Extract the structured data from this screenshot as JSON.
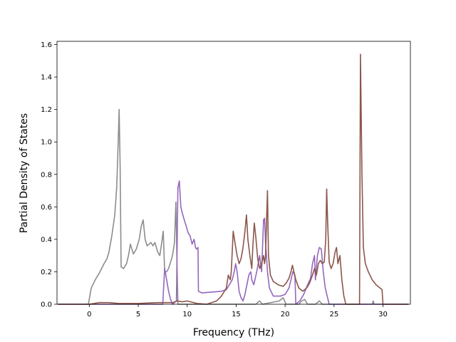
{
  "chart_data": {
    "type": "line",
    "title": "",
    "xlabel": "Frequency (THz)",
    "ylabel": "Partial Density of States",
    "xlim": [
      -3.3,
      32.8
    ],
    "ylim": [
      0,
      1.62
    ],
    "xticks": [
      0,
      5,
      10,
      15,
      20,
      25,
      30
    ],
    "yticks": [
      0.0,
      0.2,
      0.4,
      0.6,
      0.8,
      1.0,
      1.2,
      1.4,
      1.6
    ],
    "grid": false,
    "legend": "none",
    "series": [
      {
        "color": "#8c8c8c",
        "points": [
          [
            -3.2,
            0
          ],
          [
            -0.1,
            0
          ],
          [
            0.2,
            0.1
          ],
          [
            0.6,
            0.15
          ],
          [
            1.0,
            0.19
          ],
          [
            1.5,
            0.25
          ],
          [
            1.8,
            0.28
          ],
          [
            2.0,
            0.32
          ],
          [
            2.3,
            0.42
          ],
          [
            2.6,
            0.55
          ],
          [
            2.8,
            0.72
          ],
          [
            2.95,
            1.0
          ],
          [
            3.05,
            1.2
          ],
          [
            3.15,
            0.85
          ],
          [
            3.25,
            0.23
          ],
          [
            3.5,
            0.22
          ],
          [
            3.8,
            0.25
          ],
          [
            4.0,
            0.3
          ],
          [
            4.2,
            0.37
          ],
          [
            4.4,
            0.33
          ],
          [
            4.5,
            0.31
          ],
          [
            4.8,
            0.34
          ],
          [
            5.1,
            0.4
          ],
          [
            5.3,
            0.48
          ],
          [
            5.5,
            0.52
          ],
          [
            5.7,
            0.4
          ],
          [
            5.9,
            0.36
          ],
          [
            6.1,
            0.37
          ],
          [
            6.3,
            0.38
          ],
          [
            6.5,
            0.36
          ],
          [
            6.7,
            0.38
          ],
          [
            7.0,
            0.32
          ],
          [
            7.2,
            0.3
          ],
          [
            7.4,
            0.38
          ],
          [
            7.55,
            0.45
          ],
          [
            7.7,
            0.2
          ],
          [
            7.9,
            0.2
          ],
          [
            8.1,
            0.22
          ],
          [
            8.3,
            0.26
          ],
          [
            8.5,
            0.3
          ],
          [
            8.7,
            0.38
          ],
          [
            8.85,
            0.63
          ],
          [
            8.95,
            0.28
          ],
          [
            9.05,
            0.0
          ],
          [
            17.0,
            0.0
          ],
          [
            17.4,
            0.02
          ],
          [
            17.7,
            0.0
          ],
          [
            19.4,
            0.02
          ],
          [
            19.8,
            0.04
          ],
          [
            20.1,
            0.0
          ],
          [
            21.4,
            0.0
          ],
          [
            21.7,
            0.02
          ],
          [
            22.0,
            0.03
          ],
          [
            22.3,
            0.0
          ],
          [
            23.1,
            0.0
          ],
          [
            23.5,
            0.02
          ],
          [
            23.8,
            0.0
          ],
          [
            28.9,
            0.0
          ],
          [
            29.0,
            0.02
          ],
          [
            29.1,
            0.0
          ],
          [
            32.6,
            0.0
          ]
        ]
      },
      {
        "color": "#9467bd",
        "points": [
          [
            -3.2,
            0
          ],
          [
            7.5,
            0
          ],
          [
            7.7,
            0.22
          ],
          [
            7.9,
            0.15
          ],
          [
            8.1,
            0.08
          ],
          [
            8.3,
            0.03
          ],
          [
            8.5,
            0.0
          ],
          [
            8.9,
            0.02
          ],
          [
            9.05,
            0.72
          ],
          [
            9.2,
            0.76
          ],
          [
            9.35,
            0.6
          ],
          [
            9.5,
            0.56
          ],
          [
            9.7,
            0.52
          ],
          [
            9.9,
            0.48
          ],
          [
            10.1,
            0.44
          ],
          [
            10.3,
            0.42
          ],
          [
            10.5,
            0.37
          ],
          [
            10.7,
            0.4
          ],
          [
            10.85,
            0.35
          ],
          [
            10.95,
            0.34
          ],
          [
            11.1,
            0.35
          ],
          [
            11.15,
            0.08
          ],
          [
            11.5,
            0.07
          ],
          [
            12.5,
            0.075
          ],
          [
            13.5,
            0.08
          ],
          [
            14.0,
            0.09
          ],
          [
            14.3,
            0.12
          ],
          [
            14.6,
            0.15
          ],
          [
            14.8,
            0.2
          ],
          [
            14.95,
            0.25
          ],
          [
            15.1,
            0.2
          ],
          [
            15.3,
            0.08
          ],
          [
            15.5,
            0.04
          ],
          [
            15.7,
            0.02
          ],
          [
            15.9,
            0.06
          ],
          [
            16.1,
            0.12
          ],
          [
            16.3,
            0.18
          ],
          [
            16.5,
            0.2
          ],
          [
            16.6,
            0.15
          ],
          [
            16.8,
            0.12
          ],
          [
            17.1,
            0.2
          ],
          [
            17.4,
            0.3
          ],
          [
            17.6,
            0.2
          ],
          [
            17.8,
            0.52
          ],
          [
            17.9,
            0.53
          ],
          [
            18.0,
            0.38
          ],
          [
            18.2,
            0.2
          ],
          [
            18.4,
            0.1
          ],
          [
            18.8,
            0.05
          ],
          [
            19.5,
            0.05
          ],
          [
            20.0,
            0.06
          ],
          [
            20.4,
            0.1
          ],
          [
            20.8,
            0.2
          ],
          [
            21.0,
            0.18
          ],
          [
            21.1,
            0.0
          ],
          [
            21.5,
            0.02
          ],
          [
            21.9,
            0.06
          ],
          [
            22.3,
            0.12
          ],
          [
            22.6,
            0.16
          ],
          [
            22.8,
            0.25
          ],
          [
            23.0,
            0.3
          ],
          [
            23.1,
            0.15
          ],
          [
            23.3,
            0.3
          ],
          [
            23.5,
            0.35
          ],
          [
            23.7,
            0.34
          ],
          [
            23.9,
            0.2
          ],
          [
            24.1,
            0.1
          ],
          [
            24.3,
            0.05
          ],
          [
            24.5,
            0.0
          ],
          [
            32.6,
            0.0
          ]
        ]
      },
      {
        "color": "#8c564b",
        "points": [
          [
            -3.2,
            0
          ],
          [
            0.0,
            0
          ],
          [
            0.5,
            0.005
          ],
          [
            1.0,
            0.01
          ],
          [
            2.0,
            0.01
          ],
          [
            3.0,
            0.005
          ],
          [
            5.0,
            0.005
          ],
          [
            7.0,
            0.01
          ],
          [
            8.5,
            0.01
          ],
          [
            9.0,
            0.02
          ],
          [
            9.5,
            0.015
          ],
          [
            10.0,
            0.02
          ],
          [
            11.0,
            0.005
          ],
          [
            12.0,
            0.0
          ],
          [
            13.0,
            0.02
          ],
          [
            13.5,
            0.05
          ],
          [
            14.0,
            0.1
          ],
          [
            14.2,
            0.18
          ],
          [
            14.4,
            0.15
          ],
          [
            14.5,
            0.2
          ],
          [
            14.7,
            0.45
          ],
          [
            14.9,
            0.37
          ],
          [
            15.1,
            0.3
          ],
          [
            15.3,
            0.25
          ],
          [
            15.5,
            0.28
          ],
          [
            15.7,
            0.35
          ],
          [
            15.9,
            0.45
          ],
          [
            16.05,
            0.55
          ],
          [
            16.2,
            0.4
          ],
          [
            16.4,
            0.3
          ],
          [
            16.6,
            0.22
          ],
          [
            16.7,
            0.35
          ],
          [
            16.85,
            0.5
          ],
          [
            17.0,
            0.42
          ],
          [
            17.2,
            0.28
          ],
          [
            17.4,
            0.22
          ],
          [
            17.6,
            0.25
          ],
          [
            17.8,
            0.3
          ],
          [
            17.9,
            0.25
          ],
          [
            18.0,
            0.3
          ],
          [
            18.1,
            0.5
          ],
          [
            18.2,
            0.7
          ],
          [
            18.3,
            0.3
          ],
          [
            18.5,
            0.18
          ],
          [
            18.8,
            0.14
          ],
          [
            19.3,
            0.12
          ],
          [
            19.8,
            0.11
          ],
          [
            20.1,
            0.13
          ],
          [
            20.4,
            0.16
          ],
          [
            20.6,
            0.2
          ],
          [
            20.75,
            0.24
          ],
          [
            20.9,
            0.2
          ],
          [
            21.1,
            0.15
          ],
          [
            21.4,
            0.1
          ],
          [
            21.8,
            0.08
          ],
          [
            22.2,
            0.1
          ],
          [
            22.5,
            0.13
          ],
          [
            22.8,
            0.18
          ],
          [
            23.0,
            0.22
          ],
          [
            23.2,
            0.18
          ],
          [
            23.4,
            0.25
          ],
          [
            23.6,
            0.27
          ],
          [
            23.8,
            0.25
          ],
          [
            24.0,
            0.26
          ],
          [
            24.15,
            0.4
          ],
          [
            24.25,
            0.71
          ],
          [
            24.35,
            0.5
          ],
          [
            24.5,
            0.26
          ],
          [
            24.7,
            0.22
          ],
          [
            24.9,
            0.25
          ],
          [
            25.1,
            0.32
          ],
          [
            25.25,
            0.35
          ],
          [
            25.4,
            0.25
          ],
          [
            25.6,
            0.3
          ],
          [
            25.8,
            0.15
          ],
          [
            26.0,
            0.05
          ],
          [
            26.2,
            0.0
          ],
          [
            27.4,
            0.0
          ],
          [
            27.6,
            0.0
          ],
          [
            27.7,
            1.54
          ],
          [
            27.85,
            0.8
          ],
          [
            28.0,
            0.35
          ],
          [
            28.2,
            0.25
          ],
          [
            28.5,
            0.2
          ],
          [
            28.9,
            0.15
          ],
          [
            29.3,
            0.12
          ],
          [
            29.7,
            0.1
          ],
          [
            29.9,
            0.09
          ],
          [
            30.0,
            0.0
          ],
          [
            32.6,
            0.0
          ]
        ]
      }
    ]
  }
}
